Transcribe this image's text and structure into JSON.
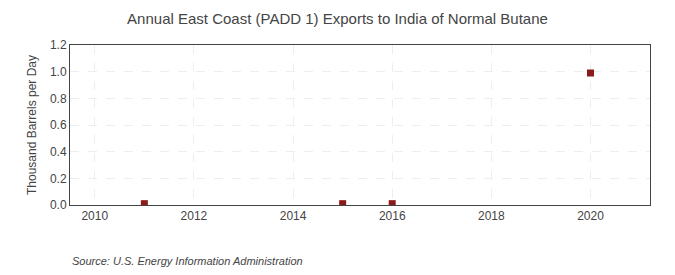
{
  "chart_data": {
    "type": "scatter",
    "title": "Annual East Coast (PADD 1) Exports to India of Normal Butane",
    "ylabel": "Thousand Barrels per Day",
    "annotations": [
      "Source: U.S. Energy Information Administration"
    ],
    "x": [
      2011,
      2015,
      2016,
      2020
    ],
    "values": [
      0.01,
      0.01,
      0.01,
      0.99
    ],
    "color": "#8b1a1a",
    "marker": "square",
    "xlim": [
      2009.5,
      2021.2
    ],
    "ylim": [
      0.0,
      1.2
    ],
    "xticks": [
      2010,
      2012,
      2014,
      2016,
      2018,
      2020
    ],
    "yticks": [
      {
        "value": 0.0,
        "label": "0.0"
      },
      0.2,
      0.4,
      0.6,
      0.8,
      {
        "value": 1.0,
        "label": "1.0"
      },
      1.2
    ],
    "grid": true
  }
}
